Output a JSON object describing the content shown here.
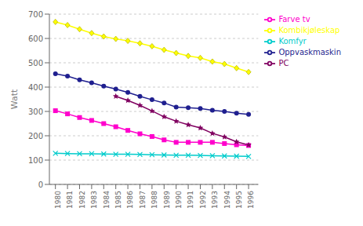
{
  "chart_data": {
    "type": "line",
    "x": [
      1980,
      1981,
      1982,
      1983,
      1984,
      1985,
      1986,
      1987,
      1988,
      1989,
      1990,
      1991,
      1992,
      1993,
      1994,
      1995,
      1996
    ],
    "xlim": [
      1979.5,
      1996.8
    ],
    "xticks": [
      1980,
      1981,
      1982,
      1983,
      1984,
      1985,
      1986,
      1987,
      1988,
      1989,
      1990,
      1991,
      1992,
      1993,
      1994,
      1995,
      1996
    ],
    "ylabel": "Watt",
    "ylim": [
      0,
      700
    ],
    "yticks": [
      0,
      100,
      200,
      300,
      400,
      500,
      600,
      700
    ],
    "grid": true,
    "legend": "right",
    "series": [
      {
        "name": "Oppvaskmaskin",
        "color": "#1F1F8F",
        "marker": "circle",
        "values": [
          455,
          445,
          430,
          418,
          404,
          392,
          378,
          362,
          348,
          335,
          318,
          315,
          312,
          305,
          300,
          293,
          288
        ]
      },
      {
        "name": "Farve tv",
        "color": "#FF00CC",
        "marker": "square",
        "values": [
          303,
          290,
          275,
          263,
          250,
          237,
          222,
          208,
          197,
          183,
          173,
          173,
          173,
          173,
          168,
          163,
          160
        ]
      },
      {
        "name": "Kombikjøleskap",
        "color": "#FFFF00",
        "marker": "diamond",
        "values": [
          668,
          655,
          638,
          622,
          608,
          598,
          590,
          580,
          568,
          553,
          540,
          528,
          520,
          505,
          495,
          478,
          462
        ]
      },
      {
        "name": "Komfyr",
        "color": "#00CCCC",
        "marker": "x",
        "values": [
          128,
          127,
          126,
          126,
          125,
          124,
          124,
          123,
          122,
          121,
          120,
          120,
          119,
          118,
          117,
          116,
          115
        ]
      },
      {
        "name": "PC",
        "color": "#800060",
        "marker": "star",
        "values": [
          null,
          null,
          null,
          null,
          null,
          362,
          345,
          325,
          302,
          278,
          260,
          245,
          232,
          210,
          195,
          175,
          162
        ]
      }
    ]
  }
}
